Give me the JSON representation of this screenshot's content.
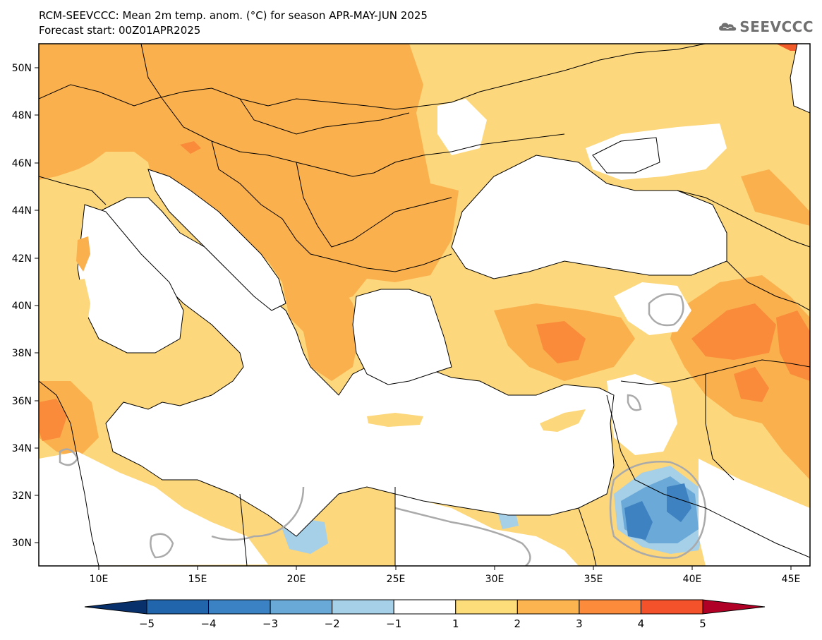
{
  "header": {
    "title": "RCM-SEEVCCC: Mean 2m temp. anom. (°C) for season APR-MAY-JUN 2025",
    "subtitle": "Forecast start: 00Z01APR2025"
  },
  "logo": {
    "text": "SEEVCCC",
    "icon": "cloud-icon"
  },
  "axes": {
    "lon_ticks": [
      "10E",
      "15E",
      "20E",
      "25E",
      "30E",
      "35E",
      "40E",
      "45E"
    ],
    "lat_ticks": [
      "30N",
      "32N",
      "34N",
      "36N",
      "38N",
      "40N",
      "42N",
      "44N",
      "46N",
      "48N",
      "50N"
    ]
  },
  "colorbar": {
    "labels": [
      "-5",
      "-4",
      "-3",
      "-2",
      "-1",
      "1",
      "2",
      "3",
      "4",
      "5"
    ],
    "colors": [
      "#2166ac",
      "#3a82c4",
      "#69a9d8",
      "#a6cfe8",
      "#ffffff",
      "#fddc7a",
      "#fcb450",
      "#fc8c3c",
      "#f4522a",
      "#d7191c"
    ],
    "under_color": "#08306b",
    "over_color": "#b10026"
  },
  "map_colors": {
    "sea": "#ffffff",
    "base_land": "#fcd77c",
    "anom_2_3": "#fbb04e",
    "anom_3_4": "#f98b3a",
    "anom_4_5": "#f25b2a",
    "neg_1_2": "#a6cfe8",
    "neg_2_3": "#6ba9d8",
    "neg_3_4": "#3f82c1",
    "zero_contour": "#aaaaaa",
    "border": "#000000"
  }
}
